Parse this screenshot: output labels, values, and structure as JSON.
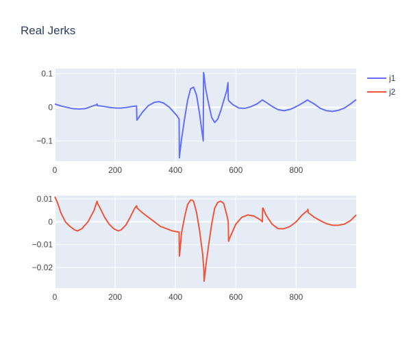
{
  "chart_data": {
    "type": "line",
    "title": "Real Jerks",
    "legend": {
      "placement": "top-right",
      "entries": [
        {
          "name": "j1",
          "color": "#636efa"
        },
        {
          "name": "j2",
          "color": "#ef553b"
        }
      ]
    },
    "plot_background": "#e5ecf6",
    "grid": true,
    "subplots": [
      {
        "series_name": "j1",
        "color": "#636efa",
        "xlim": [
          0,
          999
        ],
        "ylim": [
          -0.16,
          0.115
        ],
        "x_ticks": [
          0,
          200,
          400,
          600,
          800
        ],
        "x_tick_labels": [
          "0",
          "200",
          "400",
          "600",
          "800"
        ],
        "y_ticks": [
          0.1,
          0,
          -0.1
        ],
        "y_tick_labels": [
          "0.1",
          "0",
          "−0.1"
        ],
        "x": [
          0,
          20,
          40,
          60,
          80,
          100,
          120,
          139,
          140,
          141,
          160,
          180,
          200,
          220,
          240,
          260,
          271,
          272,
          273,
          290,
          310,
          330,
          345,
          360,
          380,
          395,
          405,
          412,
          413,
          414,
          420,
          430,
          440,
          450,
          460,
          470,
          480,
          492,
          493,
          494,
          500,
          510,
          520,
          530,
          540,
          550,
          560,
          570,
          574,
          575,
          576,
          590,
          610,
          630,
          650,
          670,
          688,
          700,
          720,
          740,
          760,
          780,
          800,
          820,
          838,
          840,
          860,
          880,
          900,
          920,
          940,
          960,
          980,
          999
        ],
        "y": [
          0.01,
          0.004,
          0.0,
          -0.004,
          -0.005,
          -0.004,
          0.002,
          0.008,
          0.01,
          0.005,
          0.003,
          0.0,
          -0.002,
          -0.002,
          0.0,
          0.003,
          0.004,
          -0.038,
          -0.037,
          -0.015,
          0.005,
          0.015,
          0.017,
          0.013,
          0.0,
          -0.015,
          -0.025,
          -0.035,
          -0.15,
          -0.14,
          -0.095,
          -0.035,
          0.02,
          0.055,
          0.06,
          0.035,
          -0.02,
          -0.1,
          0.103,
          0.1,
          0.055,
          0.01,
          -0.03,
          -0.045,
          -0.035,
          -0.01,
          0.02,
          0.05,
          0.073,
          0.025,
          0.02,
          0.008,
          -0.002,
          -0.003,
          0.002,
          0.01,
          0.022,
          0.015,
          0.003,
          -0.007,
          -0.01,
          -0.006,
          0.002,
          0.012,
          0.022,
          0.02,
          0.01,
          -0.003,
          -0.01,
          -0.012,
          -0.009,
          -0.002,
          0.01,
          0.023
        ]
      },
      {
        "series_name": "j2",
        "color": "#ef553b",
        "xlim": [
          0,
          999
        ],
        "ylim": [
          -0.029,
          0.0115
        ],
        "x_ticks": [
          0,
          200,
          400,
          600,
          800
        ],
        "x_tick_labels": [
          "0",
          "200",
          "400",
          "600",
          "800"
        ],
        "y_ticks": [
          0.01,
          0,
          -0.01,
          -0.02
        ],
        "y_tick_labels": [
          "0.01",
          "0",
          "−0.01",
          "−0.02"
        ],
        "x": [
          0,
          10,
          20,
          35,
          50,
          65,
          75,
          90,
          110,
          130,
          140,
          141,
          142,
          150,
          165,
          180,
          195,
          210,
          220,
          235,
          250,
          265,
          271,
          272,
          273,
          290,
          310,
          330,
          350,
          370,
          390,
          412,
          413,
          414,
          420,
          430,
          440,
          450,
          455,
          460,
          470,
          480,
          490,
          494,
          495,
          500,
          510,
          520,
          530,
          540,
          550,
          560,
          570,
          575,
          576,
          580,
          600,
          620,
          640,
          660,
          680,
          688,
          689,
          690,
          700,
          720,
          740,
          760,
          780,
          800,
          820,
          838,
          839,
          840,
          860,
          880,
          900,
          920,
          940,
          960,
          980,
          999
        ],
        "y": [
          0.011,
          0.008,
          0.004,
          0.0,
          -0.002,
          -0.0035,
          -0.004,
          -0.003,
          0.0,
          0.005,
          0.009,
          0.0085,
          0.008,
          0.006,
          0.002,
          -0.001,
          -0.003,
          -0.004,
          -0.0035,
          -0.0015,
          0.002,
          0.006,
          0.007,
          0.0065,
          0.006,
          0.004,
          0.002,
          0.0,
          -0.002,
          -0.003,
          -0.004,
          -0.0045,
          -0.015,
          -0.014,
          -0.005,
          0.002,
          0.0075,
          0.0095,
          0.0095,
          0.009,
          0.004,
          -0.004,
          -0.014,
          -0.021,
          -0.026,
          -0.02,
          -0.01,
          -0.001,
          0.006,
          0.0085,
          0.009,
          0.008,
          0.003,
          0.0,
          -0.0085,
          -0.007,
          -0.001,
          0.002,
          0.003,
          0.0025,
          0.001,
          0.0,
          0.006,
          0.006,
          0.003,
          -0.001,
          -0.003,
          -0.003,
          -0.002,
          0.0,
          0.003,
          0.005,
          0.0055,
          0.004,
          0.002,
          0.0005,
          -0.0008,
          -0.0015,
          -0.0015,
          -0.001,
          0.0005,
          0.003
        ]
      }
    ]
  }
}
